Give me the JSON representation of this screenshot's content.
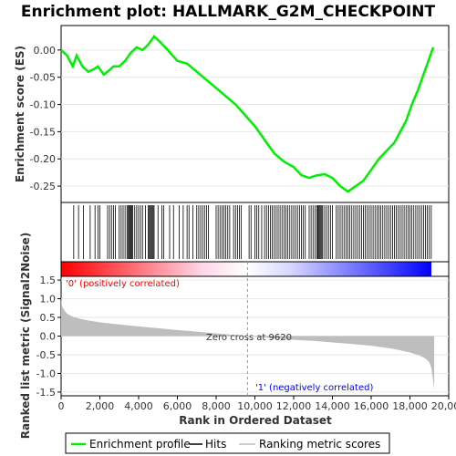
{
  "title": "Enrichment plot: HALLMARK_G2M_CHECKPOINT",
  "colors": {
    "profile": "#00ee00",
    "hits": "#000000",
    "metric_fill": "#bebebe",
    "positive": "#ff0000",
    "negative": "#0000ff",
    "neutral": "#ffffff"
  },
  "chart_data": [
    {
      "type": "line",
      "name": "enrichment-score-panel",
      "ylabel": "Enrichment score (ES)",
      "ylim": [
        -0.28,
        0.045
      ],
      "xlim": [
        0,
        20000
      ],
      "y_ticks": [
        0.0,
        -0.05,
        -0.1,
        -0.15,
        -0.2,
        -0.25
      ],
      "y_tick_labels": [
        "0.00",
        "-0.05",
        "-0.10",
        "-0.15",
        "-0.20",
        "-0.25"
      ],
      "grid": true,
      "series": [
        {
          "name": "Enrichment profile",
          "x": [
            0,
            300,
            600,
            800,
            1100,
            1400,
            1700,
            1900,
            2200,
            2400,
            2700,
            3000,
            3300,
            3600,
            3900,
            4200,
            4500,
            4800,
            5100,
            5500,
            6000,
            6500,
            7000,
            7500,
            8000,
            8500,
            9000,
            9500,
            10000,
            10500,
            11000,
            11500,
            12000,
            12400,
            12800,
            13200,
            13600,
            14000,
            14400,
            14800,
            15200,
            15600,
            16000,
            16400,
            16800,
            17200,
            17500,
            17800,
            18100,
            18400,
            18700,
            19000,
            19200
          ],
          "y": [
            0.0,
            -0.01,
            -0.03,
            -0.01,
            -0.03,
            -0.04,
            -0.035,
            -0.03,
            -0.045,
            -0.04,
            -0.03,
            -0.03,
            -0.02,
            -0.005,
            0.005,
            0.0,
            0.01,
            0.025,
            0.015,
            0.0,
            -0.02,
            -0.025,
            -0.04,
            -0.055,
            -0.07,
            -0.085,
            -0.1,
            -0.12,
            -0.14,
            -0.165,
            -0.19,
            -0.205,
            -0.215,
            -0.23,
            -0.235,
            -0.23,
            -0.228,
            -0.235,
            -0.25,
            -0.26,
            -0.25,
            -0.24,
            -0.22,
            -0.2,
            -0.185,
            -0.17,
            -0.15,
            -0.13,
            -0.1,
            -0.075,
            -0.045,
            -0.015,
            0.005
          ]
        }
      ]
    },
    {
      "type": "scatter",
      "name": "hits-panel",
      "description_series": "Hits",
      "hit_positions": [
        650,
        900,
        1150,
        1500,
        1750,
        1900,
        2000,
        2400,
        2500,
        2600,
        2700,
        2800,
        3000,
        3100,
        3200,
        3300,
        3400,
        3450,
        3500,
        3550,
        3600,
        3650,
        3700,
        3800,
        3900,
        4000,
        4100,
        4200,
        4350,
        4500,
        4550,
        4600,
        4650,
        4700,
        4750,
        4800,
        5000,
        5200,
        5300,
        5600,
        5800,
        6100,
        6300,
        6500,
        6600,
        6800,
        7000,
        7100,
        7200,
        7300,
        7400,
        7500,
        7600,
        8000,
        8100,
        8200,
        8300,
        8400,
        8500,
        8600,
        8700,
        8900,
        9000,
        9100,
        9200,
        9300,
        9700,
        9800,
        10000,
        10100,
        10200,
        10350,
        10500,
        10600,
        10700,
        10800,
        10900,
        11000,
        11100,
        11200,
        11300,
        11400,
        11500,
        11600,
        11700,
        11800,
        11900,
        12000,
        12100,
        12200,
        12300,
        12400,
        12500,
        12600,
        12800,
        12900,
        13000,
        13100,
        13200,
        13250,
        13300,
        13350,
        13400,
        13450,
        13500,
        13600,
        13700,
        13800,
        13900,
        14000,
        14200,
        14300,
        14400,
        14500,
        14600,
        14700,
        14800,
        14900,
        15000,
        15100,
        15200,
        15300,
        15400,
        15500,
        15600,
        15700,
        15800,
        15900,
        16000,
        16100,
        16200,
        16300,
        16400,
        16500,
        16600,
        16700,
        16800,
        16900,
        17000,
        17100,
        17200,
        17300,
        17400,
        17500,
        17600,
        17700,
        17800,
        17900,
        18000,
        18100,
        18200,
        18300,
        18400,
        18500,
        18600,
        18700,
        18800,
        18900,
        19000,
        19100
      ]
    },
    {
      "type": "area",
      "name": "ranked-metric-panel",
      "ylabel": "Ranked list metric (Signal2Noise)",
      "xlabel": "Rank in Ordered Dataset",
      "ylim": [
        -1.6,
        1.6
      ],
      "xlim": [
        0,
        20000
      ],
      "y_ticks": [
        1.5,
        1.0,
        0.5,
        0.0,
        -0.5,
        -1.0,
        -1.5
      ],
      "y_tick_labels": [
        "1.5",
        "1.0",
        "0.5",
        "0.0",
        "-0.5",
        "-1.0",
        "-1.5"
      ],
      "x_ticks": [
        0,
        2000,
        4000,
        6000,
        8000,
        10000,
        12000,
        14000,
        16000,
        18000,
        20000
      ],
      "x_tick_labels": [
        "0",
        "2,000",
        "4,000",
        "6,000",
        "8,000",
        "10,000",
        "12,000",
        "14,000",
        "16,000",
        "18,000",
        "20,000"
      ],
      "grid": true,
      "series": [
        {
          "name": "Ranking metric scores",
          "x": [
            0,
            50,
            150,
            300,
            600,
            1000,
            1500,
            2000,
            3000,
            4000,
            5000,
            6000,
            7000,
            8000,
            9000,
            9620,
            10000,
            11000,
            12000,
            13000,
            14000,
            15000,
            16000,
            17000,
            17500,
            18000,
            18500,
            18800,
            19000,
            19100,
            19200,
            19250
          ],
          "y": [
            1.0,
            0.8,
            0.7,
            0.6,
            0.52,
            0.46,
            0.41,
            0.37,
            0.31,
            0.26,
            0.21,
            0.16,
            0.12,
            0.07,
            0.03,
            0.0,
            -0.02,
            -0.06,
            -0.1,
            -0.13,
            -0.17,
            -0.21,
            -0.26,
            -0.33,
            -0.38,
            -0.44,
            -0.52,
            -0.6,
            -0.7,
            -0.85,
            -1.2,
            -1.45
          ]
        }
      ],
      "zero_cross": 9620,
      "annotations": {
        "positive": "'0' (positively correlated)",
        "negative": "'1' (negatively correlated)",
        "zero_cross": "Zero cross at 9620"
      }
    }
  ],
  "legend": {
    "items": [
      {
        "label": "Enrichment profile",
        "color": "#00ee00"
      },
      {
        "label": "Hits",
        "color": "#000000"
      },
      {
        "label": "Ranking metric scores",
        "color": "#bebebe"
      }
    ]
  }
}
